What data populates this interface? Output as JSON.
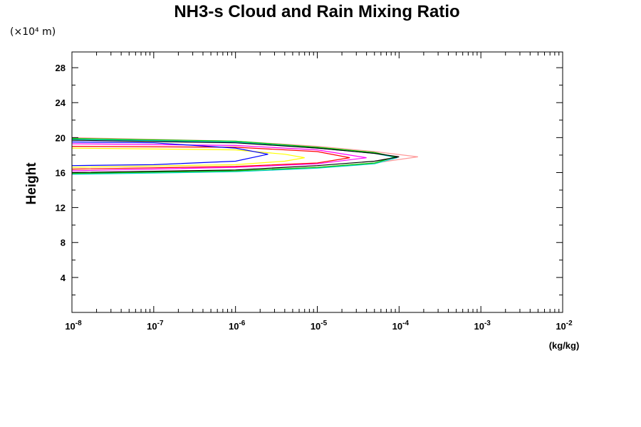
{
  "chart_data": {
    "type": "line",
    "title": "NH3-s Cloud and Rain Mixing Ratio",
    "ylabel": "Height",
    "y_unit": "(×10⁴ m)",
    "xlabel": "(kg/kg)",
    "x_scale": "log",
    "xlim": [
      1e-08,
      0.01
    ],
    "ylim": [
      0,
      29.8
    ],
    "y_ticks": [
      4,
      8,
      12,
      16,
      20,
      24,
      28
    ],
    "y_tick_labels": [
      "4",
      "8",
      "12",
      "16",
      "20",
      "24",
      "28"
    ],
    "x_ticks": [
      1e-08,
      1e-07,
      1e-06,
      1e-05,
      0.0001,
      0.001,
      0.01
    ],
    "x_tick_labels": [
      {
        "base": "10",
        "exp": "-8"
      },
      {
        "base": "10",
        "exp": "-7"
      },
      {
        "base": "10",
        "exp": "-6"
      },
      {
        "base": "10",
        "exp": "-5"
      },
      {
        "base": "10",
        "exp": "-4"
      },
      {
        "base": "10",
        "exp": "-3"
      },
      {
        "base": "10",
        "exp": "-2"
      }
    ],
    "grid": false,
    "series": [
      {
        "color": "#ff9999",
        "points": [
          [
            1e-08,
            20.0
          ],
          [
            1e-06,
            19.6
          ],
          [
            1e-05,
            19.0
          ],
          [
            5e-05,
            18.4
          ],
          [
            0.00017,
            17.8
          ],
          [
            5e-05,
            17.1
          ],
          [
            1e-05,
            16.6
          ],
          [
            1e-06,
            16.2
          ],
          [
            1e-08,
            15.9
          ]
        ]
      },
      {
        "color": "#00cccc",
        "points": [
          [
            1e-08,
            19.8
          ],
          [
            1e-06,
            19.5
          ],
          [
            1e-05,
            18.8
          ],
          [
            5e-05,
            18.2
          ],
          [
            9.5e-05,
            17.7
          ],
          [
            5e-05,
            17.0
          ],
          [
            1e-05,
            16.5
          ],
          [
            1e-06,
            16.1
          ],
          [
            1e-08,
            15.8
          ]
        ]
      },
      {
        "color": "#00cc00",
        "points": [
          [
            1e-08,
            19.9
          ],
          [
            1e-06,
            19.6
          ],
          [
            1e-05,
            18.9
          ],
          [
            5e-05,
            18.3
          ],
          [
            9e-05,
            17.8
          ],
          [
            5e-05,
            17.1
          ],
          [
            1e-05,
            16.6
          ],
          [
            1e-06,
            16.2
          ],
          [
            1e-08,
            15.9
          ]
        ]
      },
      {
        "color": "#000000",
        "points": [
          [
            1e-08,
            19.7
          ],
          [
            1e-06,
            19.4
          ],
          [
            1e-05,
            18.8
          ],
          [
            5e-05,
            18.2
          ],
          [
            0.0001,
            17.8
          ],
          [
            5e-05,
            17.3
          ],
          [
            1e-05,
            16.8
          ],
          [
            1e-06,
            16.3
          ],
          [
            1e-08,
            16.0
          ]
        ]
      },
      {
        "color": "#ff00ff",
        "points": [
          [
            1e-08,
            19.3
          ],
          [
            1e-06,
            19.1
          ],
          [
            1e-05,
            18.6
          ],
          [
            4e-05,
            17.7
          ],
          [
            1e-05,
            17.0
          ],
          [
            1e-06,
            16.6
          ],
          [
            1e-08,
            16.2
          ]
        ]
      },
      {
        "color": "#ff0000",
        "points": [
          [
            1e-08,
            19.0
          ],
          [
            1e-06,
            18.9
          ],
          [
            1e-05,
            18.4
          ],
          [
            2.5e-05,
            17.7
          ],
          [
            1e-05,
            17.1
          ],
          [
            1e-06,
            16.7
          ],
          [
            1e-08,
            16.4
          ]
        ]
      },
      {
        "color": "#ffff00",
        "points": [
          [
            1e-08,
            18.8
          ],
          [
            1e-06,
            18.6
          ],
          [
            4e-06,
            18.1
          ],
          [
            7e-06,
            17.7
          ],
          [
            4e-06,
            17.3
          ],
          [
            1e-06,
            16.9
          ],
          [
            1e-08,
            16.6
          ]
        ]
      },
      {
        "color": "#0000ff",
        "points": [
          [
            1e-08,
            19.5
          ],
          [
            1e-07,
            19.4
          ],
          [
            1e-06,
            18.8
          ],
          [
            2.5e-06,
            18.1
          ],
          [
            1e-06,
            17.3
          ],
          [
            1e-07,
            16.9
          ],
          [
            1e-08,
            16.8
          ]
        ]
      }
    ]
  }
}
